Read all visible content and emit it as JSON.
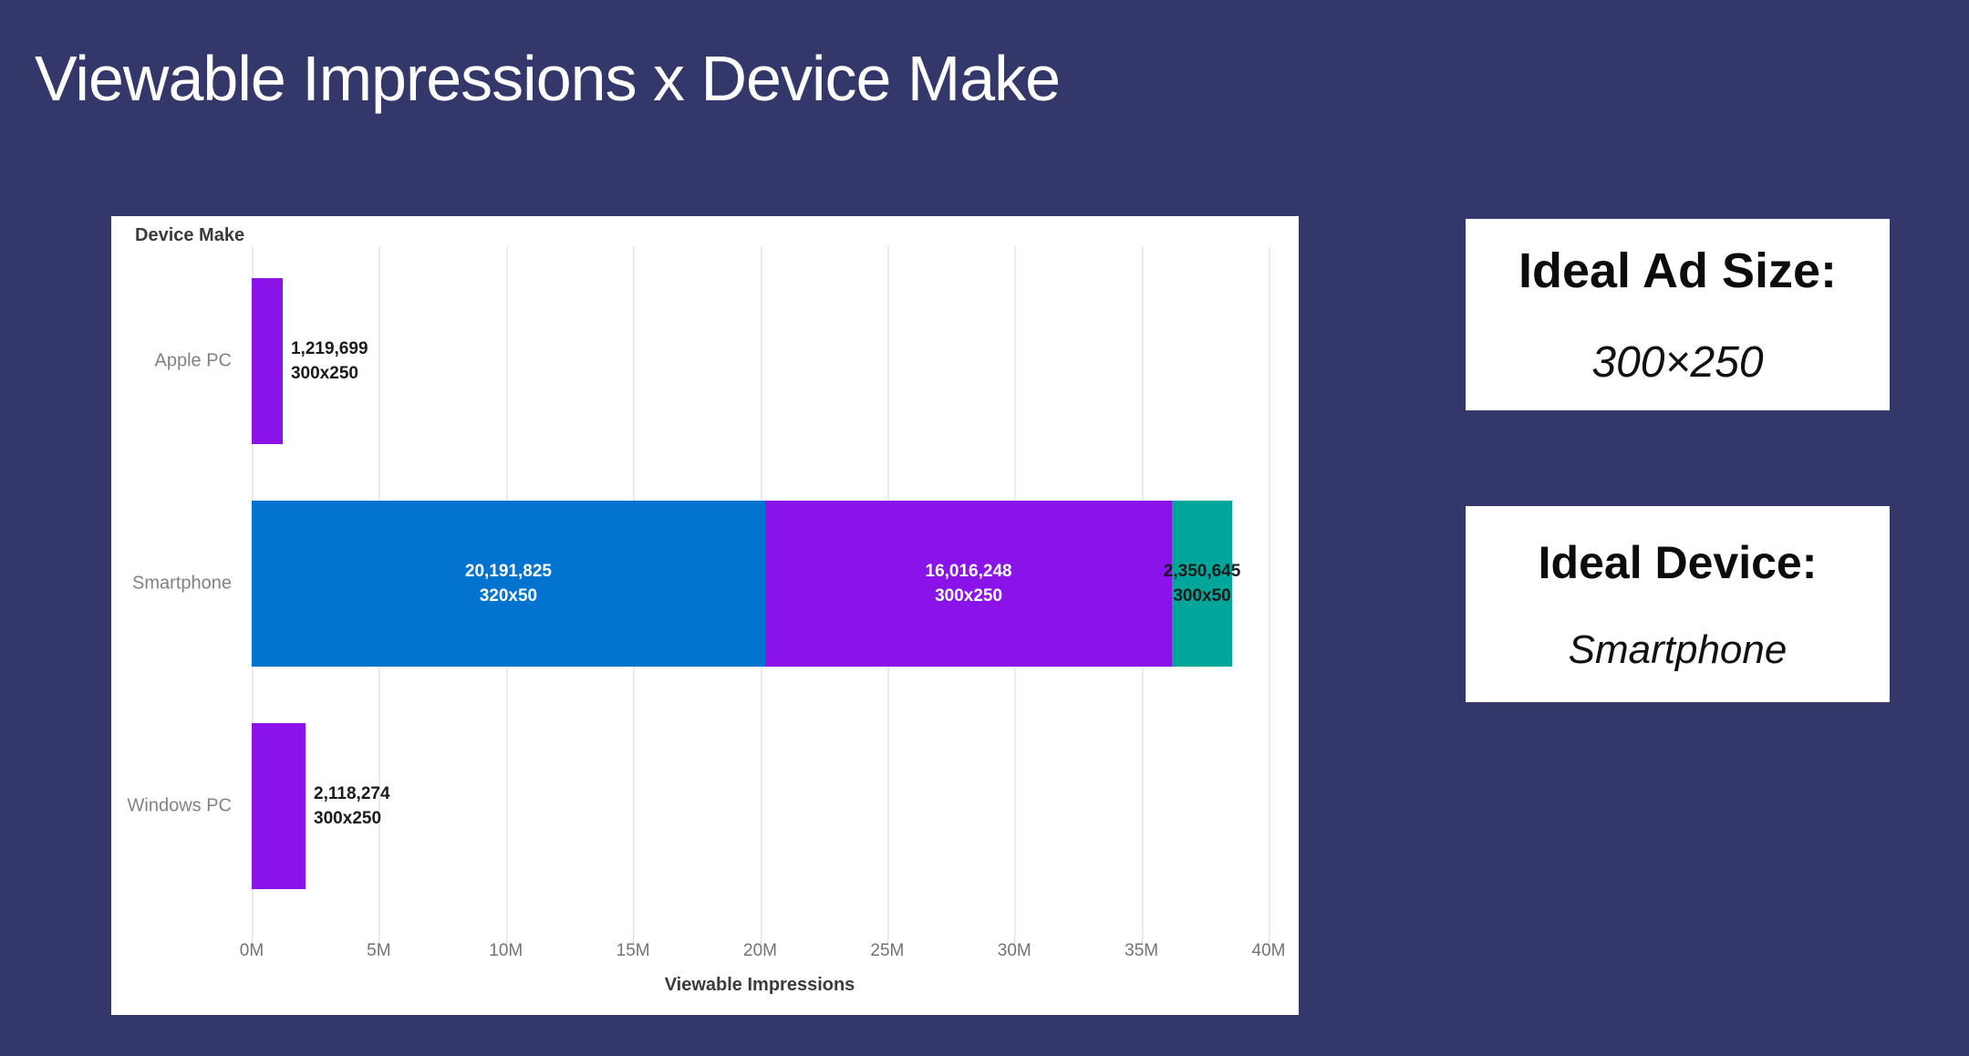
{
  "slide": {
    "title": "Viewable Impressions x Device Make",
    "background_color": "#343769",
    "title_color": "#FFFFFF"
  },
  "chart_data": {
    "type": "bar",
    "orientation": "horizontal",
    "title": "Device Make",
    "xlabel": "Viewable Impressions",
    "ylabel": "Device Make",
    "grid": true,
    "x_axis": {
      "min": 0,
      "max": 40000000,
      "tick_labels": [
        "0M",
        "5M",
        "10M",
        "15M",
        "20M",
        "25M",
        "30M",
        "35M",
        "40M"
      ]
    },
    "categories": [
      "Apple PC",
      "Smartphone",
      "Windows PC"
    ],
    "rows": [
      {
        "category": "Apple PC",
        "segments": [
          {
            "ad_size": "300x250",
            "value": 1219699,
            "value_label": "1,219,699",
            "color": "#8A13E9",
            "label_style": "outside-right",
            "label_color": "#1a1a1a"
          }
        ]
      },
      {
        "category": "Smartphone",
        "segments": [
          {
            "ad_size": "320x50",
            "value": 20191825,
            "value_label": "20,191,825",
            "color": "#0273CF",
            "label_style": "inside",
            "label_color": "#ffffff"
          },
          {
            "ad_size": "300x250",
            "value": 16016248,
            "value_label": "16,016,248",
            "color": "#8A13E9",
            "label_style": "inside",
            "label_color": "#ffffff"
          },
          {
            "ad_size": "300x50",
            "value": 2350645,
            "value_label": "2,350,645",
            "color": "#01A599",
            "label_style": "center-overflow",
            "label_color": "#1a1a1a"
          }
        ]
      },
      {
        "category": "Windows PC",
        "segments": [
          {
            "ad_size": "300x250",
            "value": 2118274,
            "value_label": "2,118,274",
            "color": "#8A13E9",
            "label_style": "outside-right",
            "label_color": "#1a1a1a"
          }
        ]
      }
    ]
  },
  "cards": [
    {
      "title": "Ideal Ad Size:",
      "value": "300×250"
    },
    {
      "title": "Ideal Device:",
      "value": "Smartphone"
    }
  ]
}
